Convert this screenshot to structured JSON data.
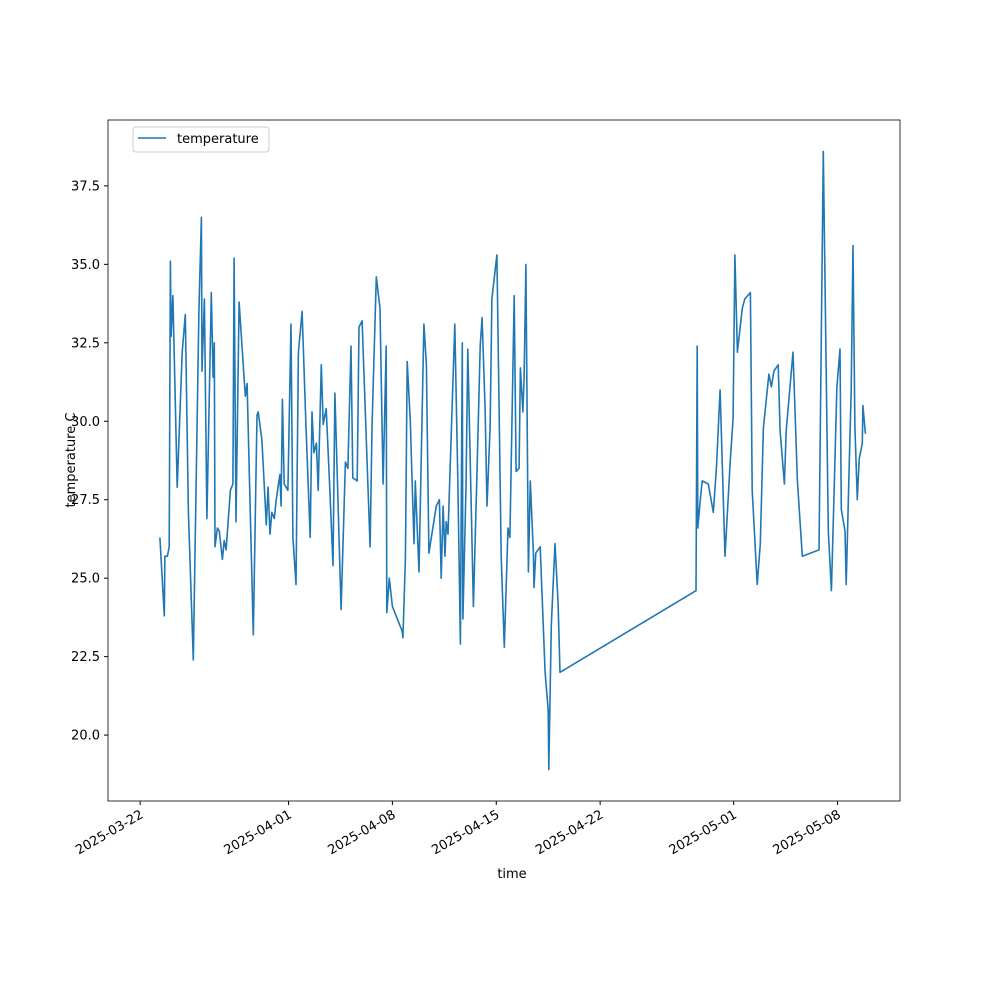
{
  "chart_data": {
    "type": "line",
    "xlabel": "time",
    "ylabel": "temperature C",
    "x": [
      "2025-03-23T08:00",
      "2025-03-23T15:00",
      "2025-03-23T16:00",
      "2025-03-23T20:00",
      "2025-03-23T23:00",
      "2025-03-24T01:00",
      "2025-03-24T02:00",
      "2025-03-24T05:00",
      "2025-03-24T12:00",
      "2025-03-24T20:00",
      "2025-03-25T01:00",
      "2025-03-25T06:00",
      "2025-03-25T14:00",
      "2025-03-25T23:00",
      "2025-03-26T03:00",
      "2025-03-26T04:00",
      "2025-03-26T08:00",
      "2025-03-26T12:00",
      "2025-03-26T19:00",
      "2025-03-26T22:00",
      "2025-03-27T00:00",
      "2025-03-27T01:00",
      "2025-03-27T05:00",
      "2025-03-27T08:00",
      "2025-03-27T13:00",
      "2025-03-27T16:00",
      "2025-03-27T19:00",
      "2025-03-28T02:00",
      "2025-03-28T06:00",
      "2025-03-28T08:00",
      "2025-03-28T11:00",
      "2025-03-28T16:00",
      "2025-03-29T02:00",
      "2025-03-29T05:00",
      "2025-03-29T15:00",
      "2025-03-29T21:00",
      "2025-03-29T23:00",
      "2025-03-30T05:00",
      "2025-03-30T12:00",
      "2025-03-30T15:00",
      "2025-03-30T18:00",
      "2025-03-30T21:00",
      "2025-03-31T01:00",
      "2025-03-31T04:00",
      "2025-03-31T10:00",
      "2025-03-31T12:00",
      "2025-03-31T14:00",
      "2025-03-31T17:00",
      "2025-03-31T20:00",
      "2025-03-31T23:00",
      "2025-04-01T04:00",
      "2025-04-01T07:00",
      "2025-04-01T12:00",
      "2025-04-01T16:00",
      "2025-04-01T22:00",
      "2025-04-02T04:00",
      "2025-04-02T11:00",
      "2025-04-02T14:00",
      "2025-04-02T17:00",
      "2025-04-02T21:00",
      "2025-04-03T00:00",
      "2025-04-03T05:00",
      "2025-04-03T08:00",
      "2025-04-03T13:00",
      "2025-04-03T19:00",
      "2025-04-04T00:00",
      "2025-04-04T03:00",
      "2025-04-04T13:00",
      "2025-04-04T20:00",
      "2025-04-05T00:00",
      "2025-04-05T05:00",
      "2025-04-05T08:00",
      "2025-04-05T15:00",
      "2025-04-05T18:00",
      "2025-04-05T23:00",
      "2025-04-06T12:00",
      "2025-04-06T15:00",
      "2025-04-06T22:00",
      "2025-04-07T04:00",
      "2025-04-07T09:00",
      "2025-04-07T14:00",
      "2025-04-07T15:00",
      "2025-04-07T19:00",
      "2025-04-08T00:00",
      "2025-04-08T16:00",
      "2025-04-08T17:00",
      "2025-04-08T21:00",
      "2025-04-09T00:00",
      "2025-04-09T05:00",
      "2025-04-09T11:00",
      "2025-04-09T13:00",
      "2025-04-09T19:00",
      "2025-04-10T03:00",
      "2025-04-10T07:00",
      "2025-04-10T11:00",
      "2025-04-10T23:00",
      "2025-04-11T04:00",
      "2025-04-11T07:00",
      "2025-04-11T10:00",
      "2025-04-11T13:00",
      "2025-04-11T15:00",
      "2025-04-11T18:00",
      "2025-04-12T05:00",
      "2025-04-12T10:00",
      "2025-04-12T14:00",
      "2025-04-12T17:00",
      "2025-04-12T18:00",
      "2025-04-12T23:00",
      "2025-04-13T02:00",
      "2025-04-13T11:00",
      "2025-04-13T17:00",
      "2025-04-13T22:00",
      "2025-04-14T01:00",
      "2025-04-14T06:00",
      "2025-04-14T09:00",
      "2025-04-14T14:00",
      "2025-04-14T17:00",
      "2025-04-15T01:00",
      "2025-04-15T08:00",
      "2025-04-15T13:00",
      "2025-04-15T19:00",
      "2025-04-15T22:00",
      "2025-04-16T05:00",
      "2025-04-16T08:00",
      "2025-04-16T13:00",
      "2025-04-16T15:00",
      "2025-04-16T19:00",
      "2025-04-16T21:00",
      "2025-04-17T00:00",
      "2025-04-17T04:00",
      "2025-04-17T07:00",
      "2025-04-17T12:00",
      "2025-04-17T13:00",
      "2025-04-17T16:00",
      "2025-04-17T23:00",
      "2025-04-18T07:00",
      "2025-04-18T12:00",
      "2025-04-18T13:00",
      "2025-04-18T17:00",
      "2025-04-18T23:00",
      "2025-04-19T04:00",
      "2025-04-19T07:00",
      "2025-04-28T11:00",
      "2025-04-28T13:00",
      "2025-04-28T14:00",
      "2025-04-28T18:00",
      "2025-04-28T21:00",
      "2025-04-29T07:00",
      "2025-04-29T15:00",
      "2025-04-29T20:00",
      "2025-04-30T02:00",
      "2025-04-30T10:00",
      "2025-04-30T18:00",
      "2025-04-30T23:00",
      "2025-05-01T02:00",
      "2025-05-01T06:00",
      "2025-05-01T14:00",
      "2025-05-01T18:00",
      "2025-05-02T03:00",
      "2025-05-02T06:00",
      "2025-05-02T14:00",
      "2025-05-02T19:00",
      "2025-05-03T00:00",
      "2025-05-03T09:00",
      "2025-05-03T13:00",
      "2025-05-03T17:00",
      "2025-05-04T00:00",
      "2025-05-04T03:00",
      "2025-05-04T10:00",
      "2025-05-04T13:00",
      "2025-05-05T00:00",
      "2025-05-05T07:00",
      "2025-05-05T15:00",
      "2025-05-06T18:00",
      "2025-05-07T01:00",
      "2025-05-07T04:00",
      "2025-05-07T09:00",
      "2025-05-07T14:00",
      "2025-05-07T18:00",
      "2025-05-07T23:00",
      "2025-05-08T04:00",
      "2025-05-08T06:00",
      "2025-05-08T12:00",
      "2025-05-08T14:00",
      "2025-05-08T19:00",
      "2025-05-08T22:00",
      "2025-05-09T01:00",
      "2025-05-09T04:00",
      "2025-05-09T08:00",
      "2025-05-09T11:00",
      "2025-05-09T16:00",
      "2025-05-09T17:00",
      "2025-05-09T21:00"
    ],
    "series": [
      {
        "name": "temperature",
        "color": "#1f77b4",
        "values": [
          26.3,
          23.8,
          25.7,
          25.7,
          26.0,
          35.1,
          32.7,
          34.0,
          27.9,
          32.2,
          33.4,
          27.1,
          22.4,
          33.5,
          36.5,
          31.6,
          33.9,
          26.9,
          34.1,
          31.4,
          32.5,
          26.0,
          26.6,
          26.5,
          25.6,
          26.2,
          25.9,
          27.8,
          28.0,
          35.2,
          26.8,
          33.8,
          30.8,
          31.2,
          23.2,
          30.2,
          30.3,
          29.4,
          26.7,
          27.9,
          26.4,
          27.1,
          26.9,
          27.5,
          28.3,
          27.3,
          30.7,
          28.0,
          27.9,
          27.8,
          33.1,
          26.3,
          24.8,
          32.2,
          33.5,
          30.0,
          26.3,
          30.3,
          29.0,
          29.3,
          27.8,
          31.8,
          29.9,
          30.4,
          27.7,
          25.4,
          30.9,
          24.0,
          28.7,
          28.5,
          32.4,
          28.2,
          28.1,
          33.0,
          33.2,
          26.0,
          29.8,
          34.6,
          33.6,
          28.0,
          32.4,
          23.9,
          25.0,
          24.1,
          23.3,
          23.1,
          25.6,
          31.9,
          30.0,
          26.1,
          28.1,
          25.2,
          33.1,
          31.8,
          25.8,
          27.3,
          27.5,
          25.0,
          27.3,
          25.7,
          26.8,
          26.4,
          33.1,
          28.0,
          22.9,
          32.5,
          23.7,
          27.9,
          32.3,
          24.1,
          28.5,
          32.4,
          33.3,
          30.4,
          27.3,
          29.8,
          33.9,
          35.3,
          25.7,
          22.8,
          26.6,
          26.3,
          34.0,
          28.4,
          28.5,
          31.7,
          30.3,
          31.4,
          35.0,
          25.2,
          28.1,
          25.8,
          24.7,
          25.8,
          26.0,
          22.0,
          20.8,
          18.9,
          23.5,
          26.1,
          24.2,
          22.0,
          24.6,
          32.4,
          26.6,
          27.5,
          28.1,
          28.0,
          27.1,
          28.5,
          31.0,
          25.7,
          28.6,
          30.1,
          35.3,
          32.2,
          33.6,
          33.9,
          34.1,
          27.8,
          24.8,
          26.1,
          29.8,
          31.5,
          31.1,
          31.6,
          31.8,
          29.7,
          28.0,
          29.7,
          32.2,
          28.1,
          25.7,
          25.9,
          38.6,
          34.0,
          26.5,
          24.6,
          27.4,
          31.1,
          32.3,
          27.2,
          26.5,
          24.8,
          28.7,
          31.0,
          35.6,
          29.8,
          27.5,
          28.8,
          29.3,
          30.5,
          29.6
        ]
      }
    ],
    "xlim": [
      "2025-03-19T20:00",
      "2025-05-12T05:00"
    ],
    "xticks": [
      "2025-03-22",
      "2025-04-01",
      "2025-04-08",
      "2025-04-15",
      "2025-04-22",
      "2025-05-01",
      "2025-05-08"
    ],
    "ylim": [
      17.9,
      39.6
    ],
    "yticks": [
      {
        "value": 20,
        "label": "20.0"
      },
      22.5,
      {
        "value": 25,
        "label": "25.0"
      },
      27.5,
      {
        "value": 30,
        "label": "30.0"
      },
      32.5,
      {
        "value": 35,
        "label": "35.0"
      },
      37.5
    ],
    "legend": "upper left"
  }
}
